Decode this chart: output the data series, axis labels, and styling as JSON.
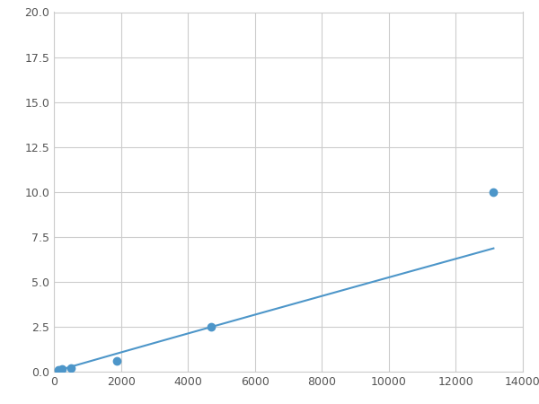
{
  "x_points": [
    125,
    250,
    500,
    1875,
    4688,
    13125
  ],
  "y_points": [
    0.1,
    0.15,
    0.2,
    0.6,
    2.5,
    10.0
  ],
  "line_color": "#4d96c9",
  "marker_color": "#4d96c9",
  "marker_size": 6,
  "xlim": [
    0,
    14000
  ],
  "ylim": [
    0,
    20.0
  ],
  "xticks": [
    0,
    2000,
    4000,
    6000,
    8000,
    10000,
    12000,
    14000
  ],
  "yticks": [
    0.0,
    2.5,
    5.0,
    7.5,
    10.0,
    12.5,
    15.0,
    17.5,
    20.0
  ],
  "grid_color": "#cccccc",
  "background_color": "#ffffff",
  "figsize": [
    6.0,
    4.5
  ],
  "dpi": 100
}
